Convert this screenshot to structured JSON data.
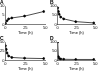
{
  "chart_data": [
    {
      "type": "line",
      "title": "A",
      "x_label": "Time (h)",
      "x": [
        0,
        2,
        4,
        8,
        24,
        48
      ],
      "values": [
        0.5,
        2,
        3,
        3.5,
        4.5,
        7
      ],
      "color": "#000000",
      "marker": "circle",
      "xlim": [
        0,
        50
      ],
      "xticks": [
        0,
        25,
        50
      ],
      "ylim": [
        0,
        10
      ],
      "yticks": [
        0,
        5,
        10
      ]
    },
    {
      "type": "line",
      "title": "B",
      "x_label": "Time (h)",
      "x": [
        0,
        1,
        2,
        4,
        8,
        24,
        48
      ],
      "values": [
        90,
        70,
        55,
        40,
        30,
        15,
        8
      ],
      "color": "#000000",
      "marker": "circle",
      "xlim": [
        0,
        50
      ],
      "xticks": [
        0,
        25,
        50
      ],
      "ylim": [
        0,
        100
      ],
      "yticks": [
        0,
        50,
        100
      ]
    },
    {
      "type": "line",
      "title": "C",
      "x_label": "Time (h)",
      "x": [
        0,
        1,
        2,
        4,
        8,
        24,
        48
      ],
      "values": [
        40,
        30,
        20,
        12,
        8,
        6,
        5
      ],
      "color": "#000000",
      "marker": "circle",
      "xlim": [
        0,
        50
      ],
      "xticks": [
        0,
        25,
        50
      ],
      "ylim": [
        0,
        50
      ],
      "yticks": [
        0,
        25,
        50
      ]
    },
    {
      "type": "line",
      "title": "D",
      "x_label": "Time (h)",
      "x": [
        0,
        1,
        2,
        4,
        8,
        24,
        48
      ],
      "values": [
        100,
        20,
        10,
        8,
        6,
        5,
        5
      ],
      "color": "#000000",
      "marker": "circle",
      "xlim": [
        0,
        50
      ],
      "xticks": [
        0,
        25,
        50
      ],
      "ylim": [
        0,
        100
      ],
      "yticks": [
        0,
        50,
        100
      ]
    }
  ]
}
